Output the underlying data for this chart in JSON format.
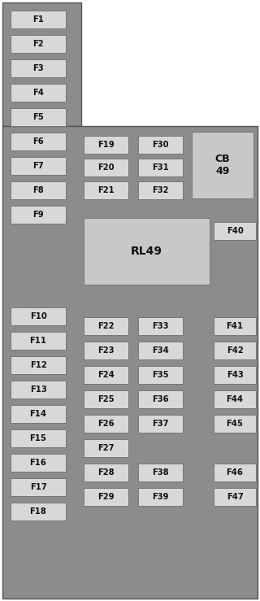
{
  "bg_color": "#8c8c8c",
  "fuse_bg": "#d8d8d8",
  "cb49_bg": "#c8c8c8",
  "rl49_bg": "#c8c8c8",
  "text_color": "#111111",
  "figsize": [
    3.2,
    7.39
  ],
  "dpi": 100,
  "left_col1": [
    "F1",
    "F2",
    "F3",
    "F4",
    "F5",
    "F6",
    "F7",
    "F8",
    "F9"
  ],
  "left_col2": [
    "F10",
    "F11",
    "F12",
    "F13",
    "F14",
    "F15",
    "F16",
    "F17",
    "F18"
  ],
  "col_f19": [
    "F19",
    "F20",
    "F21"
  ],
  "col_f30": [
    "F30",
    "F31",
    "F32"
  ],
  "col_f22": [
    "F22",
    "F23",
    "F24",
    "F25",
    "F26",
    "F27",
    "F28",
    "F29"
  ],
  "col_f33": [
    "F33",
    "F34",
    "F35",
    "F36",
    "F37",
    "",
    "F38",
    "F39"
  ],
  "col_f41": [
    "F41",
    "F42",
    "F43",
    "F44",
    "F45",
    "",
    "F46",
    "F47"
  ]
}
